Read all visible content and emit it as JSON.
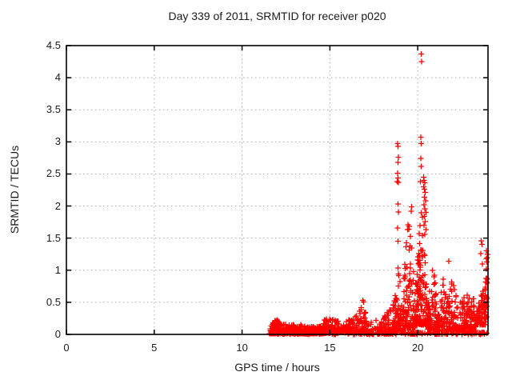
{
  "window": {
    "background": "#ffffff",
    "foreground": "#1a1a1a"
  },
  "chart_data": {
    "type": "scatter",
    "title": "Day 339 of 2011, SRMTID for receiver p020",
    "xlabel": "GPS time / hours",
    "ylabel": "SRMTID / TECUs",
    "xlim": [
      0,
      24
    ],
    "ylim": [
      0,
      4.5
    ],
    "xticks": {
      "values": [
        0,
        5,
        10,
        15,
        20
      ],
      "labels": [
        "0",
        "5",
        "10",
        "15",
        "20"
      ]
    },
    "yticks": {
      "values": [
        0,
        0.5,
        1,
        1.5,
        2,
        2.5,
        3,
        3.5,
        4,
        4.5
      ],
      "labels": [
        "0",
        "0.5",
        "1",
        "1.5",
        "2",
        "2.5",
        "3",
        "3.5",
        "4",
        "4.5"
      ]
    },
    "grid": {
      "visible": true,
      "style": "dashed",
      "color": "#ababab"
    },
    "border_color": "#000000",
    "marker": {
      "shape": "plus",
      "color": "#ff0000",
      "size": 7
    },
    "data_start_hour": 11.6,
    "max_point": [
      20.2,
      4.37
    ],
    "outlier_points": [
      [
        20.2,
        4.37
      ],
      [
        20.21,
        4.25
      ],
      [
        20.18,
        3.07
      ],
      [
        20.2,
        2.97
      ],
      [
        20.17,
        2.74
      ],
      [
        20.2,
        2.62
      ],
      [
        20.16,
        2.38
      ],
      [
        18.86,
        2.97
      ],
      [
        18.88,
        2.93
      ],
      [
        18.9,
        2.76
      ],
      [
        18.88,
        2.68
      ],
      [
        18.85,
        2.51
      ],
      [
        18.88,
        2.44
      ],
      [
        18.84,
        2.38
      ],
      [
        18.9,
        2.37
      ],
      [
        18.88,
        2.03
      ],
      [
        18.89,
        1.91
      ],
      [
        18.86,
        1.66
      ],
      [
        18.87,
        1.45
      ],
      [
        20.33,
        2.45
      ],
      [
        20.36,
        2.4
      ],
      [
        20.4,
        2.36
      ],
      [
        20.34,
        2.3
      ],
      [
        20.38,
        2.26
      ],
      [
        20.42,
        2.21
      ],
      [
        20.37,
        2.14
      ],
      [
        20.44,
        2.08
      ],
      [
        20.35,
        2.02
      ],
      [
        20.4,
        1.96
      ],
      [
        20.46,
        1.9
      ],
      [
        20.38,
        1.84
      ],
      [
        20.43,
        1.76
      ],
      [
        20.35,
        1.7
      ],
      [
        20.48,
        1.63
      ],
      [
        20.41,
        1.56
      ],
      [
        19.52,
        1.68
      ],
      [
        19.58,
        1.53
      ],
      [
        19.62,
        1.92
      ],
      [
        19.65,
        1.99
      ],
      [
        23.62,
        1.46
      ],
      [
        23.66,
        1.4
      ],
      [
        23.6,
        1.26
      ],
      [
        23.68,
        1.1
      ],
      [
        23.9,
        1.3
      ],
      [
        23.92,
        1.18
      ],
      [
        21.97,
        0.02
      ],
      [
        21.99,
        0.02
      ]
    ],
    "density_clusters": [
      {
        "x0": 11.55,
        "x1": 12.35,
        "n": 110,
        "ymin": 0.01,
        "ymax": 0.24,
        "pow": 2.2,
        "shape": "peak"
      },
      {
        "x0": 12.35,
        "x1": 13.45,
        "n": 120,
        "ymin": 0.01,
        "ymax": 0.16,
        "pow": 2.0,
        "shape": "flat"
      },
      {
        "x0": 13.45,
        "x1": 14.65,
        "n": 120,
        "ymin": 0.01,
        "ymax": 0.13,
        "pow": 2.0,
        "shape": "flat"
      },
      {
        "x0": 14.65,
        "x1": 15.5,
        "n": 85,
        "ymin": 0.02,
        "ymax": 0.24,
        "pow": 2.0,
        "shape": "flat"
      },
      {
        "x0": 15.5,
        "x1": 16.55,
        "n": 80,
        "ymin": 0.03,
        "ymax": 0.34,
        "pow": 1.8,
        "shape": "rise"
      },
      {
        "x0": 16.6,
        "x1": 17.15,
        "n": 48,
        "ymin": 0.04,
        "ymax": 0.62,
        "pow": 1.8,
        "shape": "peak"
      },
      {
        "x0": 17.1,
        "x1": 17.7,
        "n": 22,
        "ymin": 0.0,
        "ymax": 0.25,
        "pow": 2.0,
        "shape": "flat"
      },
      {
        "x0": 17.7,
        "x1": 18.55,
        "n": 95,
        "ymin": 0.01,
        "ymax": 0.47,
        "pow": 2.0,
        "shape": "rise"
      },
      {
        "x0": 18.55,
        "x1": 19.15,
        "n": 85,
        "ymin": 0.05,
        "ymax": 1.08,
        "pow": 2.2,
        "shape": "peak"
      },
      {
        "x0": 19.15,
        "x1": 19.85,
        "n": 130,
        "ymin": 0.1,
        "ymax": 1.82,
        "pow": 2.4,
        "shape": "peak"
      },
      {
        "x0": 19.85,
        "x1": 20.55,
        "n": 150,
        "ymin": 0.15,
        "ymax": 1.95,
        "pow": 2.2,
        "shape": "peak"
      },
      {
        "x0": 20.55,
        "x1": 21.15,
        "n": 95,
        "ymin": 0.08,
        "ymax": 1.12,
        "pow": 2.2,
        "shape": "peak"
      },
      {
        "x0": 21.15,
        "x1": 22.35,
        "n": 150,
        "ymin": 0.05,
        "ymax": 1.18,
        "pow": 2.4,
        "shape": "peak"
      },
      {
        "x0": 22.35,
        "x1": 23.3,
        "n": 115,
        "ymin": 0.04,
        "ymax": 0.62,
        "pow": 2.0,
        "shape": "flat"
      },
      {
        "x0": 23.3,
        "x1": 23.9,
        "n": 85,
        "ymin": 0.15,
        "ymax": 0.95,
        "pow": 1.8,
        "shape": "rise"
      },
      {
        "x0": 23.8,
        "x1": 23.97,
        "n": 40,
        "ymin": 0.25,
        "ymax": 1.45,
        "pow": 1.6,
        "shape": "rise"
      },
      {
        "x0": 11.6,
        "x1": 23.97,
        "n": 220,
        "ymin": 0.0,
        "ymax": 0.035,
        "pow": 1.0,
        "shape": "flat"
      }
    ],
    "seed": 7
  }
}
